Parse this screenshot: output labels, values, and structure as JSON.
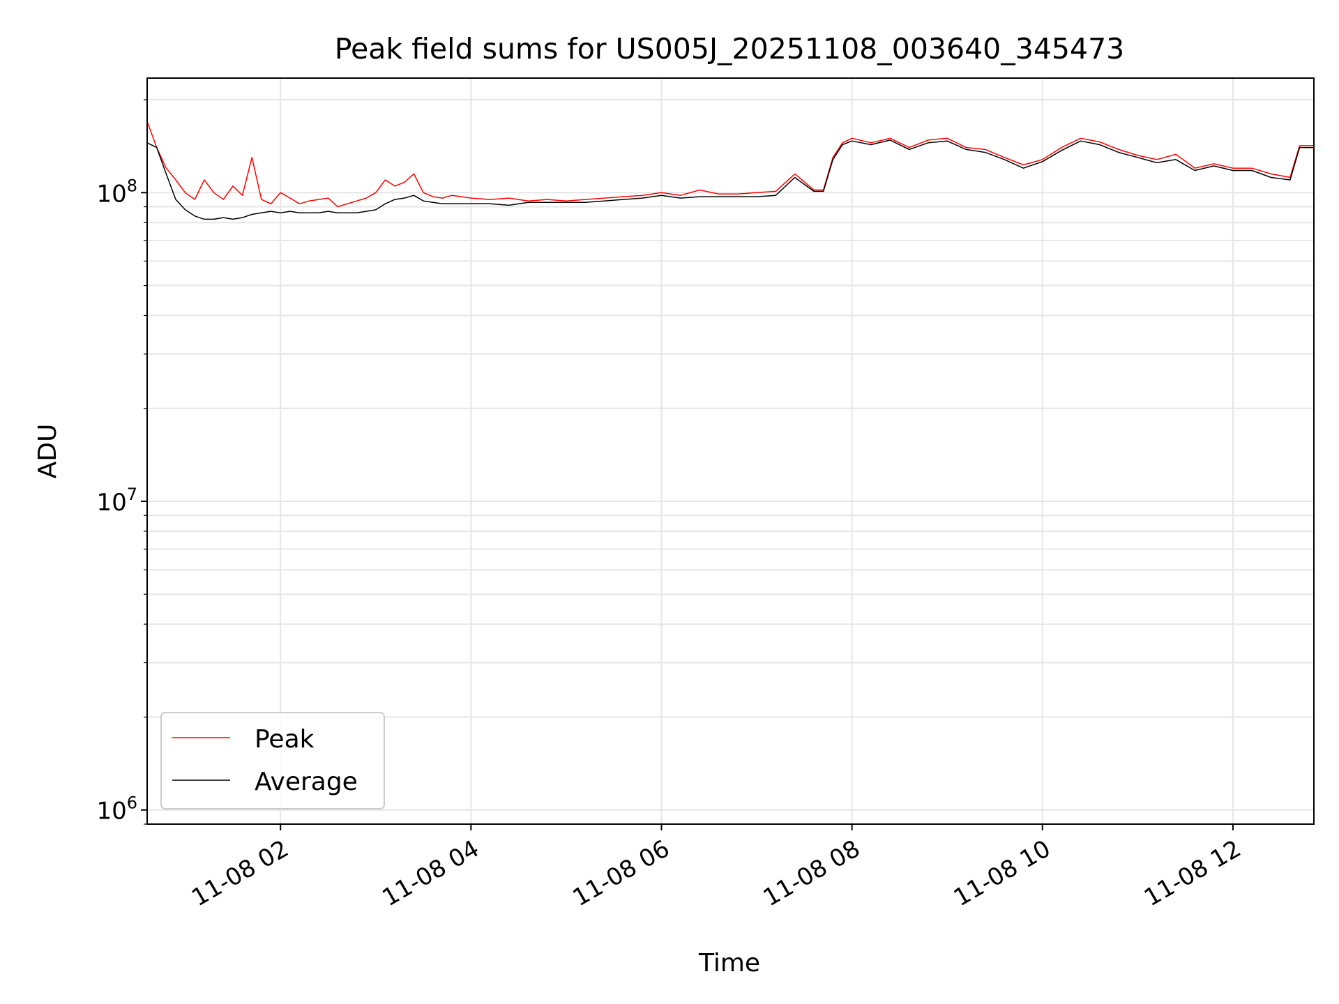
{
  "chart_data": {
    "type": "line",
    "title": "Peak field sums for US005J_20251108_003640_345473",
    "xlabel": "Time",
    "ylabel": "ADU",
    "yscale": "log",
    "ylim": [
      900000,
      235000000
    ],
    "xlim": [
      0.6,
      12.85
    ],
    "x_unit": "hours since 11-08 00:00",
    "grid": true,
    "legend_position": "lower-left",
    "x_ticks": [
      {
        "value": 2,
        "label": "11-08 02"
      },
      {
        "value": 4,
        "label": "11-08 04"
      },
      {
        "value": 6,
        "label": "11-08 06"
      },
      {
        "value": 8,
        "label": "11-08 08"
      },
      {
        "value": 10,
        "label": "11-08 10"
      },
      {
        "value": 12,
        "label": "11-08 12"
      }
    ],
    "y_ticks": [
      {
        "value": 1000000,
        "base": "10",
        "exp": "6"
      },
      {
        "value": 10000000,
        "base": "10",
        "exp": "7"
      },
      {
        "value": 100000000,
        "base": "10",
        "exp": "8"
      }
    ],
    "series": [
      {
        "name": "Peak",
        "color": "#ff0000",
        "x": [
          0.6,
          0.7,
          0.8,
          0.9,
          1.0,
          1.1,
          1.2,
          1.3,
          1.4,
          1.5,
          1.6,
          1.7,
          1.8,
          1.9,
          2.0,
          2.1,
          2.2,
          2.3,
          2.4,
          2.5,
          2.6,
          2.7,
          2.8,
          2.9,
          3.0,
          3.1,
          3.2,
          3.3,
          3.4,
          3.5,
          3.6,
          3.7,
          3.8,
          3.9,
          4.0,
          4.2,
          4.4,
          4.6,
          4.8,
          5.0,
          5.2,
          5.4,
          5.6,
          5.8,
          6.0,
          6.2,
          6.4,
          6.6,
          6.8,
          7.0,
          7.2,
          7.4,
          7.6,
          7.7,
          7.8,
          7.9,
          8.0,
          8.2,
          8.4,
          8.6,
          8.8,
          9.0,
          9.2,
          9.4,
          9.6,
          9.8,
          10.0,
          10.2,
          10.4,
          10.6,
          10.8,
          11.0,
          11.2,
          11.4,
          11.6,
          11.8,
          12.0,
          12.2,
          12.4,
          12.6,
          12.7,
          12.85
        ],
        "values": [
          170000000,
          140000000,
          120000000,
          110000000,
          100000000,
          95000000,
          110000000,
          100000000,
          95000000,
          105000000,
          98000000,
          130000000,
          95000000,
          92000000,
          100000000,
          96000000,
          92000000,
          94000000,
          95000000,
          96000000,
          90000000,
          92000000,
          94000000,
          96000000,
          100000000,
          110000000,
          105000000,
          108000000,
          115000000,
          100000000,
          97000000,
          96000000,
          98000000,
          97000000,
          96000000,
          95000000,
          96000000,
          94000000,
          95000000,
          94000000,
          95000000,
          96000000,
          97000000,
          98000000,
          100000000,
          98000000,
          102000000,
          99000000,
          99000000,
          100000000,
          101000000,
          115000000,
          102000000,
          102000000,
          130000000,
          145000000,
          150000000,
          145000000,
          150000000,
          140000000,
          148000000,
          150000000,
          140000000,
          138000000,
          130000000,
          123000000,
          128000000,
          140000000,
          150000000,
          146000000,
          138000000,
          132000000,
          128000000,
          133000000,
          120000000,
          124000000,
          120000000,
          120000000,
          115000000,
          112000000,
          142000000,
          142000000
        ]
      },
      {
        "name": "Average",
        "color": "#000000",
        "x": [
          0.6,
          0.7,
          0.8,
          0.9,
          1.0,
          1.1,
          1.2,
          1.3,
          1.4,
          1.5,
          1.6,
          1.7,
          1.8,
          1.9,
          2.0,
          2.1,
          2.2,
          2.3,
          2.4,
          2.5,
          2.6,
          2.7,
          2.8,
          2.9,
          3.0,
          3.1,
          3.2,
          3.3,
          3.4,
          3.5,
          3.6,
          3.7,
          3.8,
          3.9,
          4.0,
          4.2,
          4.4,
          4.6,
          4.8,
          5.0,
          5.2,
          5.4,
          5.6,
          5.8,
          6.0,
          6.2,
          6.4,
          6.6,
          6.8,
          7.0,
          7.2,
          7.4,
          7.6,
          7.7,
          7.8,
          7.9,
          8.0,
          8.2,
          8.4,
          8.6,
          8.8,
          9.0,
          9.2,
          9.4,
          9.6,
          9.8,
          10.0,
          10.2,
          10.4,
          10.6,
          10.8,
          11.0,
          11.2,
          11.4,
          11.6,
          11.8,
          12.0,
          12.2,
          12.4,
          12.6,
          12.7,
          12.85
        ],
        "values": [
          145000000,
          140000000,
          115000000,
          95000000,
          88000000,
          84000000,
          82000000,
          82000000,
          83000000,
          82000000,
          83000000,
          85000000,
          86000000,
          87000000,
          86000000,
          87000000,
          86000000,
          86000000,
          86000000,
          87000000,
          86000000,
          86000000,
          86000000,
          87000000,
          88000000,
          92000000,
          95000000,
          96000000,
          98000000,
          94000000,
          93000000,
          92000000,
          92000000,
          92000000,
          92000000,
          92000000,
          91000000,
          93000000,
          93000000,
          93000000,
          93000000,
          94000000,
          95000000,
          96000000,
          98000000,
          96000000,
          97000000,
          97000000,
          97000000,
          97000000,
          98000000,
          112000000,
          101000000,
          101000000,
          128000000,
          143000000,
          147000000,
          143000000,
          148000000,
          138000000,
          145000000,
          147000000,
          138000000,
          135000000,
          128000000,
          120000000,
          126000000,
          137000000,
          147000000,
          143000000,
          135000000,
          130000000,
          125000000,
          128000000,
          118000000,
          122000000,
          118000000,
          118000000,
          112000000,
          110000000,
          140000000,
          140000000
        ]
      }
    ]
  }
}
